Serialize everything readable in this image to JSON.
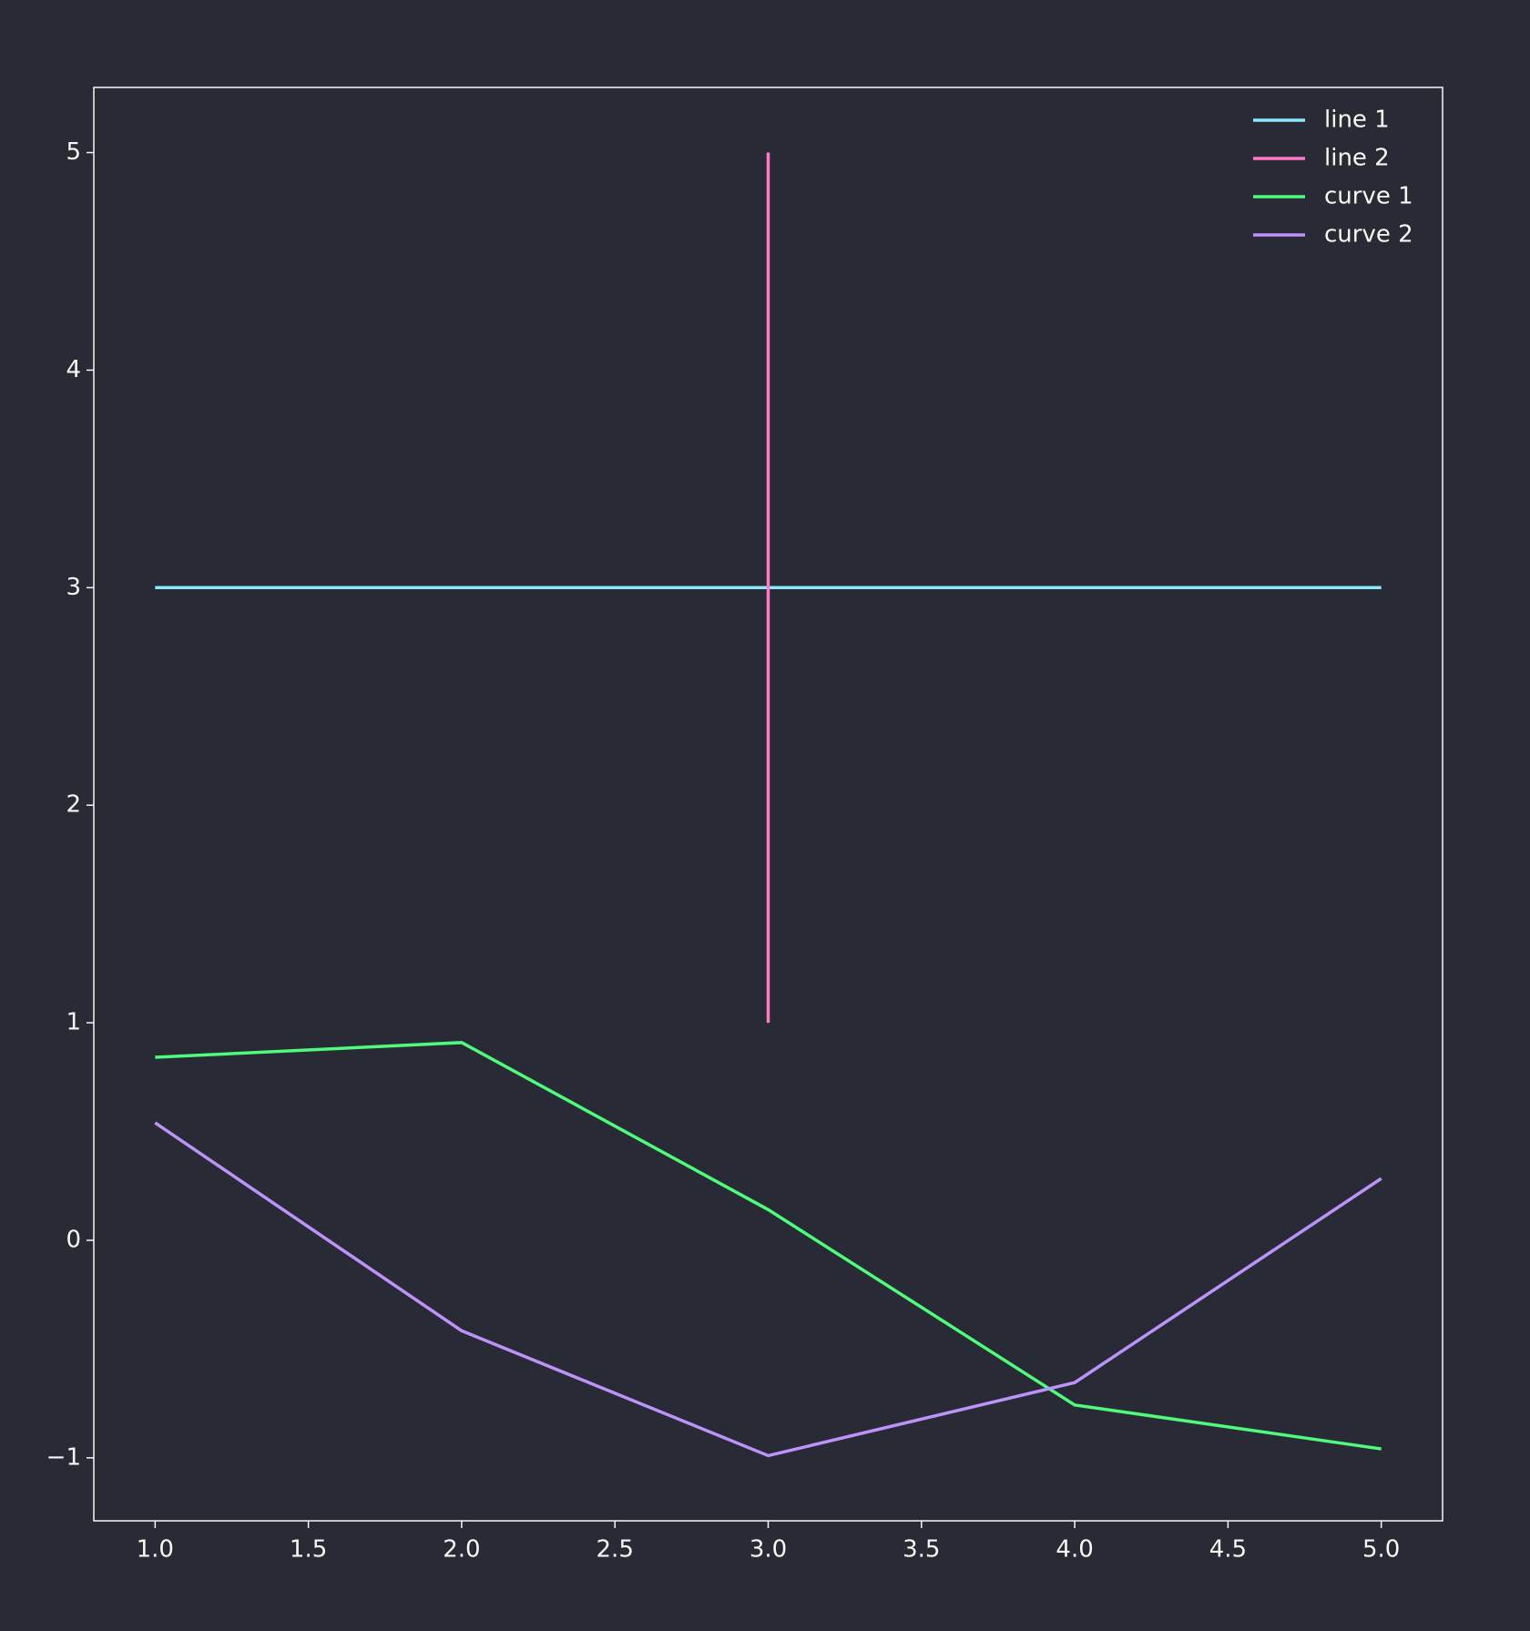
{
  "chart_data": {
    "type": "line",
    "series": [
      {
        "name": "line 1",
        "color": "#8be9fd",
        "x": [
          1,
          5
        ],
        "values": [
          3,
          3
        ]
      },
      {
        "name": "line 2",
        "color": "#ff79c6",
        "x": [
          3,
          3
        ],
        "values": [
          1,
          5
        ]
      },
      {
        "name": "curve 1",
        "color": "#50fa7b",
        "x": [
          1,
          2,
          3,
          4,
          5
        ],
        "values": [
          0.841,
          0.909,
          0.141,
          -0.757,
          -0.959
        ]
      },
      {
        "name": "curve 2",
        "color": "#bd93f9",
        "x": [
          1,
          2,
          3,
          4,
          5
        ],
        "values": [
          0.54,
          -0.416,
          -0.99,
          -0.654,
          0.284
        ]
      }
    ],
    "xlim": [
      0.8,
      5.2
    ],
    "ylim": [
      -1.2895,
      5.2995
    ],
    "xticks": [
      {
        "value": 1,
        "label": "1.0"
      },
      {
        "value": 1.5,
        "label": "1.5"
      },
      {
        "value": 2,
        "label": "2.0"
      },
      {
        "value": 2.5,
        "label": "2.5"
      },
      {
        "value": 3,
        "label": "3.0"
      },
      {
        "value": 3.5,
        "label": "3.5"
      },
      {
        "value": 4,
        "label": "4.0"
      },
      {
        "value": 4.5,
        "label": "4.5"
      },
      {
        "value": 5,
        "label": "5.0"
      }
    ],
    "yticks": [
      {
        "value": -1,
        "label": "−1"
      },
      0,
      1,
      2,
      3,
      4,
      5
    ],
    "legend": "upper right",
    "grid": false
  }
}
